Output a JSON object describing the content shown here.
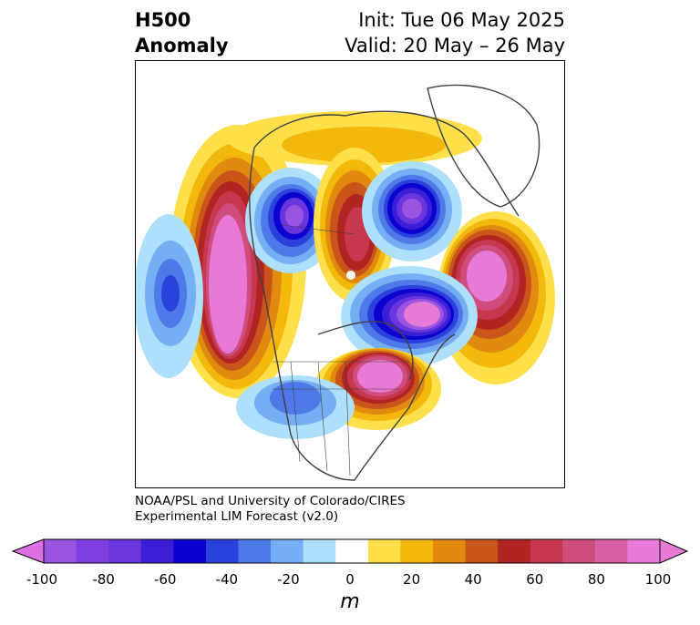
{
  "title": {
    "left_line1": "H500",
    "left_line2": "Anomaly",
    "right_line1": "Init: Tue 06 May 2025",
    "right_line2": "Valid: 20 May – 26 May"
  },
  "credit": {
    "line1": "NOAA/PSL and University of Colorado/CIRES",
    "line2": "Experimental LIM Forecast (v2.0)"
  },
  "colorbar": {
    "unit": "m",
    "extend": "both",
    "tick_labels": [
      "-100",
      "-80",
      "-60",
      "-40",
      "-20",
      "0",
      "20",
      "40",
      "60",
      "80",
      "100"
    ],
    "levels": [
      -100,
      -90,
      -80,
      -70,
      -60,
      -50,
      -40,
      -30,
      -20,
      -10,
      10,
      20,
      30,
      40,
      50,
      60,
      70,
      80,
      90,
      100
    ],
    "colors": [
      "#9a55e0",
      "#7e3fe0",
      "#6a35dd",
      "#3b1fd6",
      "#0b00cf",
      "#2a41dc",
      "#4f78e8",
      "#76aef3",
      "#aee0fb",
      "#ffffff",
      "#ffe04a",
      "#f3b80c",
      "#e08a0f",
      "#c9551a",
      "#b12424",
      "#c5384f",
      "#cf4d7c",
      "#d95fa4",
      "#e77ad6"
    ],
    "low_extend_color": "#dd70e2",
    "high_extend_color": "#e77ad6"
  },
  "map": {
    "projection": "polar stereographic, North America centered",
    "anomalies": [
      {
        "name": "ridge-west-coast",
        "sign": "positive",
        "peak_m": 100
      },
      {
        "name": "trough-north-pacific",
        "sign": "negative",
        "peak_m": -60
      },
      {
        "name": "trough-western-canada",
        "sign": "negative",
        "peak_m": -80
      },
      {
        "name": "ridge-arctic-canada",
        "sign": "positive",
        "peak_m": 60
      },
      {
        "name": "trough-baffin-greenland",
        "sign": "negative",
        "peak_m": -90
      },
      {
        "name": "ridge-north-atlantic",
        "sign": "positive",
        "peak_m": 80
      },
      {
        "name": "trough-north-america-east",
        "sign": "negative",
        "peak_m": -100
      },
      {
        "name": "ridge-great-lakes",
        "sign": "positive",
        "peak_m": 100
      },
      {
        "name": "trough-southwest-us",
        "sign": "negative",
        "peak_m": -40
      }
    ]
  }
}
